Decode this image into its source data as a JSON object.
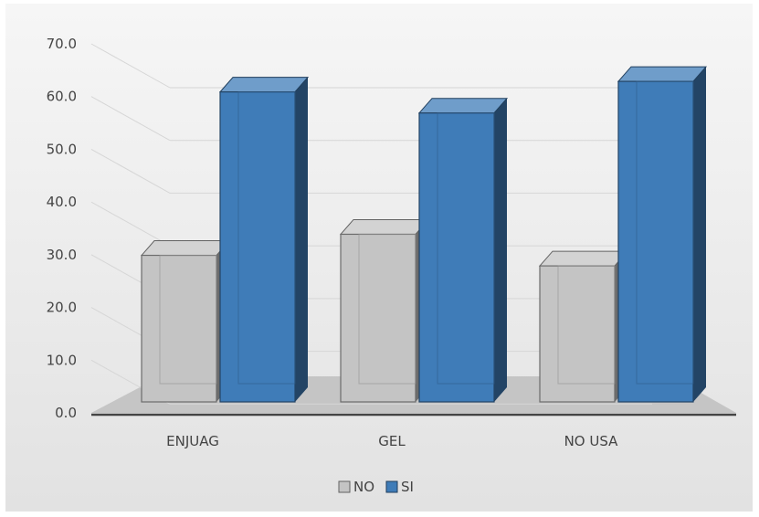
{
  "chart_data": {
    "type": "bar",
    "title": "",
    "xlabel": "",
    "ylabel": "",
    "categories": [
      "ENJUAG",
      "GEL",
      "NO USA"
    ],
    "series": [
      {
        "name": "NO",
        "values": [
          33.0,
          37.0,
          31.0
        ]
      },
      {
        "name": "SI",
        "values": [
          64.0,
          60.0,
          66.0
        ]
      }
    ],
    "ylim": [
      0,
      70
    ],
    "y_ticks": [
      "0.0",
      "10.0",
      "20.0",
      "30.0",
      "40.0",
      "50.0",
      "60.0",
      "70.0"
    ],
    "grid": true,
    "legend": "bottom",
    "colors": {
      "NO": "#c4c4c4",
      "SI": "#3f7cb8"
    }
  }
}
